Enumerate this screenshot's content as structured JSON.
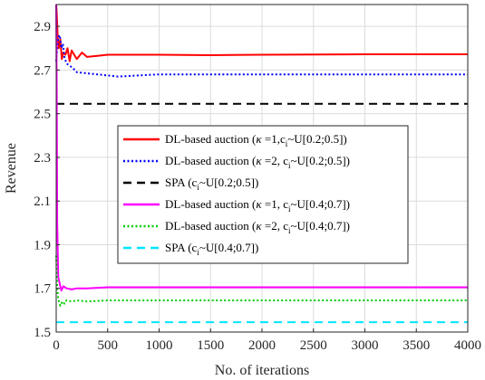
{
  "chart_data": {
    "type": "line",
    "xlabel": "No. of iterations",
    "ylabel": "Revenue",
    "xlim": [
      0,
      4000
    ],
    "ylim": [
      1.5,
      3.0
    ],
    "xticks": [
      0,
      500,
      1000,
      1500,
      2000,
      2500,
      3000,
      3500,
      4000
    ],
    "yticks": [
      1.5,
      1.7,
      1.9,
      2.1,
      2.3,
      2.5,
      2.7,
      2.9
    ],
    "grid": true,
    "legend_position": "center",
    "series": [
      {
        "name": "DL-based auction (κ =1,c_i~U[0.2;0.5])",
        "label_parts": [
          "DL-based auction (",
          "κ",
          " =1,c",
          "i",
          "~U[0.2;0.5])"
        ],
        "color": "#ff0000",
        "style": "solid",
        "x": [
          0,
          5,
          15,
          25,
          40,
          55,
          70,
          90,
          110,
          130,
          150,
          200,
          250,
          300,
          400,
          500,
          700,
          1000,
          1500,
          2000,
          3000,
          4000
        ],
        "y": [
          3.0,
          2.96,
          2.85,
          2.8,
          2.84,
          2.75,
          2.78,
          2.77,
          2.8,
          2.74,
          2.79,
          2.75,
          2.78,
          2.76,
          2.765,
          2.77,
          2.77,
          2.77,
          2.768,
          2.77,
          2.772,
          2.772
        ]
      },
      {
        "name": "DL-based auction (κ =2, c_i~U[0.2;0.5])",
        "label_parts": [
          "DL-based auction (",
          "κ",
          " =2, c",
          "i",
          "~U[0.2;0.5])"
        ],
        "color": "#0000ff",
        "style": "dotted",
        "x": [
          0,
          10,
          20,
          35,
          50,
          65,
          80,
          100,
          130,
          160,
          200,
          300,
          400,
          600,
          800,
          1000,
          1500,
          2000,
          3000,
          4000
        ],
        "y": [
          2.74,
          2.8,
          2.85,
          2.86,
          2.8,
          2.82,
          2.76,
          2.73,
          2.72,
          2.71,
          2.69,
          2.685,
          2.68,
          2.67,
          2.675,
          2.68,
          2.68,
          2.68,
          2.68,
          2.68
        ]
      },
      {
        "name": "SPA (c_i~U[0.2;0.5])",
        "label_parts": [
          "SPA (c",
          "i",
          "~U[0.2;0.5])"
        ],
        "color": "#000000",
        "style": "dashed",
        "x": [
          0,
          4000
        ],
        "y": [
          2.545,
          2.545
        ]
      },
      {
        "name": "DL-based auction (κ =1, c_i~U[0.4;0.7])",
        "label_parts": [
          "DL-based auction (",
          "κ",
          " =1, c",
          "i",
          "~U[0.4;0.7])"
        ],
        "color": "#ff00ff",
        "style": "solid",
        "x": [
          0,
          5,
          10,
          20,
          35,
          50,
          70,
          100,
          150,
          200,
          300,
          500,
          800,
          1000,
          1500,
          2000,
          3000,
          4000
        ],
        "y": [
          3.0,
          2.6,
          2.0,
          1.75,
          1.72,
          1.69,
          1.71,
          1.7,
          1.695,
          1.7,
          1.7,
          1.705,
          1.705,
          1.705,
          1.705,
          1.705,
          1.705,
          1.705
        ]
      },
      {
        "name": "DL-based auction (κ =2, c_i~U[0.4;0.7])",
        "label_parts": [
          "DL-based auction (",
          "κ",
          " =2, c",
          "i",
          "~U[0.4;0.7])"
        ],
        "color": "#00cc00",
        "style": "dotted",
        "x": [
          0,
          10,
          20,
          40,
          60,
          80,
          100,
          150,
          200,
          300,
          500,
          800,
          1000,
          1500,
          2000,
          3000,
          4000
        ],
        "y": [
          1.85,
          1.7,
          1.65,
          1.62,
          1.64,
          1.63,
          1.645,
          1.64,
          1.645,
          1.64,
          1.645,
          1.645,
          1.645,
          1.645,
          1.645,
          1.645,
          1.645
        ]
      },
      {
        "name": "SPA (c_i~U[0.4;0.7])",
        "label_parts": [
          "SPA (c",
          "i",
          "~U[0.4;0.7])"
        ],
        "color": "#00e5ff",
        "style": "dashed",
        "x": [
          0,
          4000
        ],
        "y": [
          1.545,
          1.545
        ]
      }
    ]
  }
}
